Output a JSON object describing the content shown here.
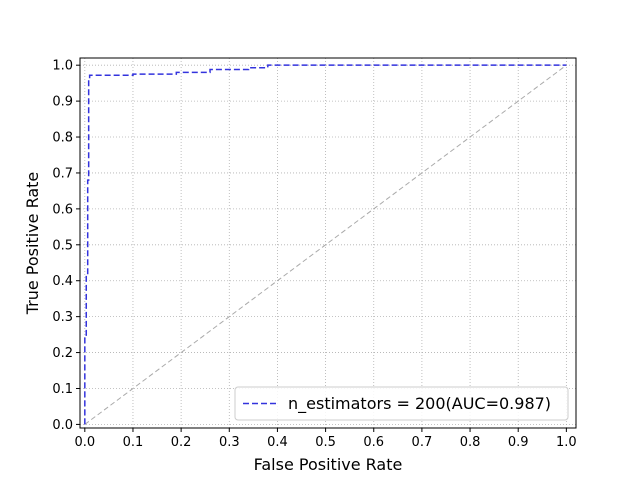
{
  "chart_data": {
    "type": "line",
    "title": "",
    "xlabel": "False Positive Rate",
    "ylabel": "True Positive Rate",
    "xlim": [
      -0.01,
      1.02
    ],
    "ylim": [
      -0.01,
      1.02
    ],
    "x_ticks": [
      "0.0",
      "0.1",
      "0.2",
      "0.3",
      "0.4",
      "0.5",
      "0.6",
      "0.7",
      "0.8",
      "0.9",
      "1.0"
    ],
    "y_ticks": [
      "0.0",
      "0.1",
      "0.2",
      "0.3",
      "0.4",
      "0.5",
      "0.6",
      "0.7",
      "0.8",
      "0.9",
      "1.0"
    ],
    "grid": true,
    "legend_position": "lower-right",
    "series": [
      {
        "name": "n_estimators = 200(AUC=0.987)",
        "color": "#3333dd",
        "style": "dashed",
        "x": [
          0.0,
          0.0,
          0.003,
          0.003,
          0.006,
          0.006,
          0.008,
          0.008,
          0.01,
          0.01,
          0.1,
          0.1,
          0.19,
          0.19,
          0.26,
          0.26,
          0.34,
          0.34,
          0.38,
          0.38,
          1.0
        ],
        "y": [
          0.0,
          0.24,
          0.24,
          0.42,
          0.42,
          0.68,
          0.68,
          0.96,
          0.96,
          0.972,
          0.972,
          0.975,
          0.975,
          0.98,
          0.98,
          0.988,
          0.988,
          0.993,
          0.993,
          1.0,
          1.0
        ]
      },
      {
        "name": "",
        "color": "#aaaaaa",
        "style": "dashed",
        "x": [
          0.0,
          1.0
        ],
        "y": [
          0.0,
          1.0
        ]
      }
    ]
  }
}
